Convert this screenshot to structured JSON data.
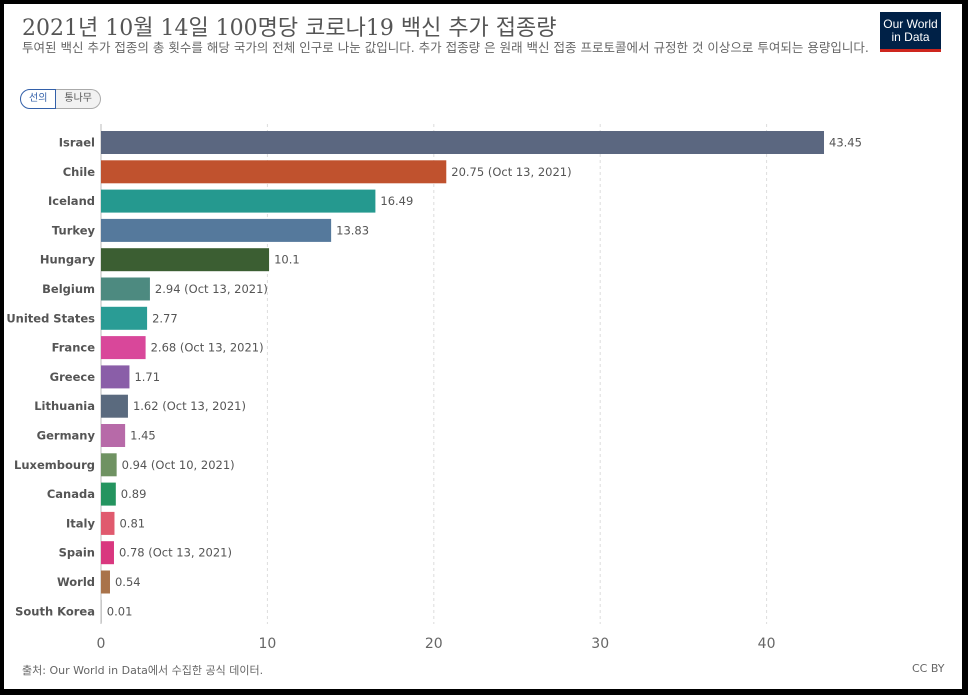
{
  "header": {
    "title": "2021년 10월 14일 100명당 코로나19 백신 추가 접종량",
    "subtitle": "투여된 백신 추가 접종의 총 횟수를 해당 국가의 전체 인구로 나눈 값입니다. 추가 접종량 은 원래 백신 접종 프로토콜에서 규정한 것 이상으로 투여되는 용량입니다.",
    "logo_line1": "Our World",
    "logo_line2": "in Data"
  },
  "toggle": {
    "line_label": "선의",
    "tree_label": "통나무"
  },
  "footer": {
    "source": "출처: Our World in Data에서 수집한 공식 데이터.",
    "license": "CC BY"
  },
  "chart_data": {
    "type": "bar",
    "orientation": "horizontal",
    "title": "2021년 10월 14일 100명당 코로나19 백신 추가 접종량",
    "xlim": [
      0,
      45
    ],
    "xticks": [
      0,
      10,
      20,
      30,
      40
    ],
    "grid": true,
    "categories": [
      "Israel",
      "Chile",
      "Iceland",
      "Turkey",
      "Hungary",
      "Belgium",
      "United States",
      "France",
      "Greece",
      "Lithuania",
      "Germany",
      "Luxembourg",
      "Canada",
      "Italy",
      "Spain",
      "World",
      "South Korea"
    ],
    "values": [
      43.45,
      20.75,
      16.49,
      13.83,
      10.1,
      2.94,
      2.77,
      2.68,
      1.71,
      1.62,
      1.45,
      0.94,
      0.89,
      0.81,
      0.78,
      0.54,
      0.01
    ],
    "value_labels": [
      "43.45",
      "20.75 (Oct 13, 2021)",
      "16.49",
      "13.83",
      "10.1",
      "2.94 (Oct 13, 2021)",
      "2.77",
      "2.68 (Oct 13, 2021)",
      "1.71",
      "1.62 (Oct 13, 2021)",
      "1.45",
      "0.94 (Oct 10, 2021)",
      "0.89",
      "0.81",
      "0.78 (Oct 13, 2021)",
      "0.54",
      "0.01"
    ],
    "colors": [
      "#5b6780",
      "#c0522e",
      "#25998f",
      "#55799c",
      "#3b5e32",
      "#4d8a80",
      "#2a9c95",
      "#d9479a",
      "#8a5ea8",
      "#5a6a7e",
      "#b76aa8",
      "#6f9262",
      "#24945f",
      "#e05a6e",
      "#d9377f",
      "#a9734a",
      "#bbbbbb"
    ]
  }
}
